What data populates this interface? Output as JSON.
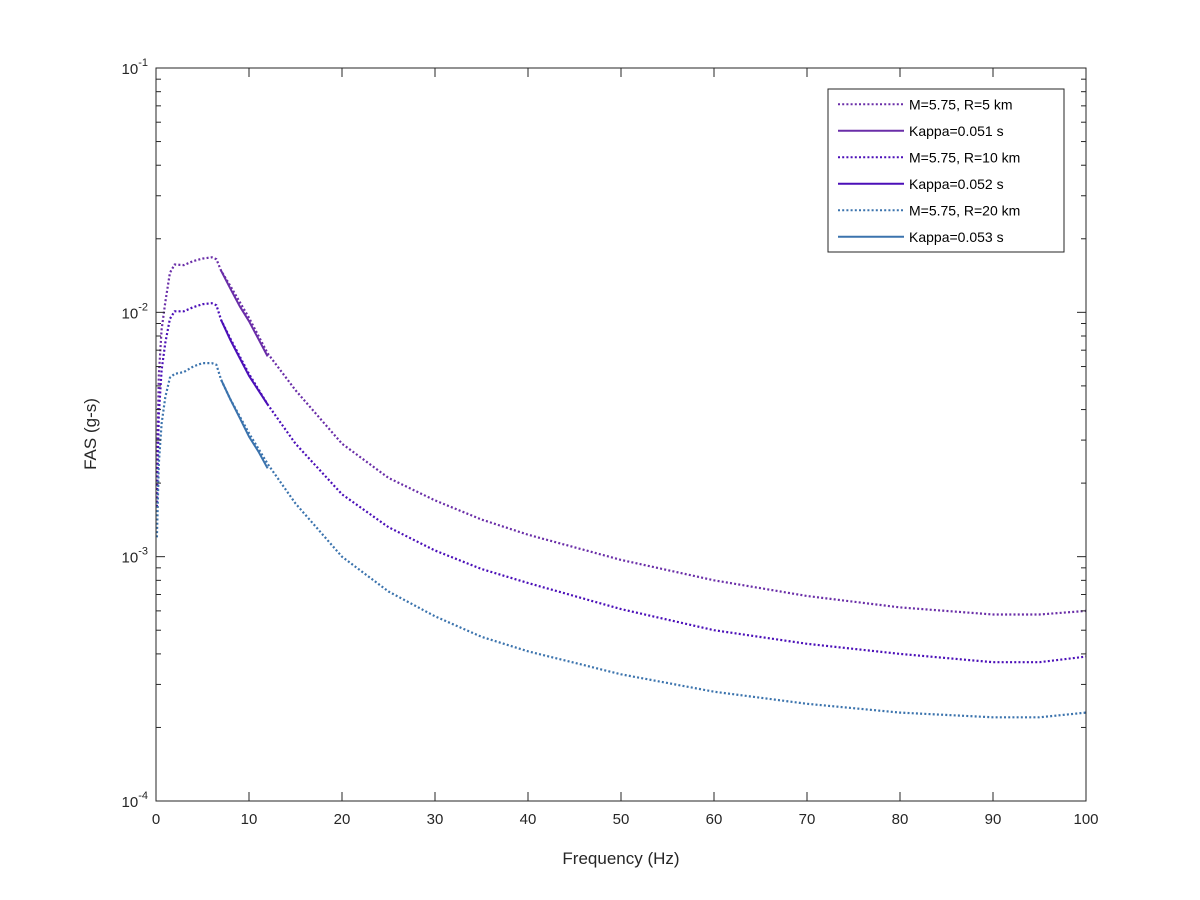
{
  "chart_data": {
    "type": "line",
    "title": "",
    "xlabel": "Frequency (Hz)",
    "ylabel": "FAS (g-s)",
    "xlim": [
      0,
      100
    ],
    "ylim": [
      0.0001,
      0.1
    ],
    "yscale": "log",
    "grid": false,
    "legend_position": "top-right",
    "x_ticks": [
      0,
      10,
      20,
      30,
      40,
      50,
      60,
      70,
      80,
      90,
      100
    ],
    "x_tick_labels": [
      "0",
      "10",
      "20",
      "30",
      "40",
      "50",
      "60",
      "70",
      "80",
      "90",
      "100"
    ],
    "y_ticks": [
      {
        "value": 0.1,
        "base": "10",
        "exponent": "-1"
      },
      {
        "value": 0.01,
        "base": "10",
        "exponent": "-2"
      },
      {
        "value": 0.001,
        "base": "10",
        "exponent": "-3"
      },
      {
        "value": 0.0001,
        "base": "10",
        "exponent": "-4"
      }
    ],
    "series": [
      {
        "name": "M=5.75, R=5 km",
        "style": "dotted",
        "color": "#6a2ea8",
        "x": [
          0.1,
          0.3,
          0.6,
          1.0,
          1.5,
          2.0,
          3.0,
          4.0,
          5.0,
          6.0,
          6.5,
          7.0,
          8.0,
          10.0,
          12.0,
          15.0,
          20.0,
          25.0,
          30.0,
          35.0,
          40.0,
          50.0,
          60.0,
          70.0,
          80.0,
          90.0,
          95.0,
          100.0
        ],
        "y": [
          0.0022,
          0.0055,
          0.0085,
          0.011,
          0.0145,
          0.0157,
          0.0156,
          0.0162,
          0.0166,
          0.0168,
          0.0165,
          0.0148,
          0.0128,
          0.0095,
          0.0068,
          0.0048,
          0.0029,
          0.0021,
          0.0017,
          0.00142,
          0.00123,
          0.00097,
          0.0008,
          0.00069,
          0.00062,
          0.00058,
          0.00058,
          0.0006
        ]
      },
      {
        "name": "Kappa=0.051 s",
        "style": "solid",
        "color": "#6a2ea8",
        "x": [
          7.0,
          8.0,
          9.0,
          10.0,
          11.0,
          12.0
        ],
        "y": [
          0.0148,
          0.0125,
          0.0106,
          0.0092,
          0.0078,
          0.0066
        ]
      },
      {
        "name": "M=5.75, R=10 km",
        "style": "dotted",
        "color": "#4b0fb8",
        "x": [
          0.1,
          0.3,
          0.6,
          1.0,
          1.5,
          2.0,
          3.0,
          4.0,
          5.0,
          6.0,
          6.5,
          7.0,
          8.0,
          10.0,
          12.0,
          15.0,
          20.0,
          25.0,
          30.0,
          35.0,
          40.0,
          50.0,
          60.0,
          70.0,
          80.0,
          90.0,
          95.0,
          100.0
        ],
        "y": [
          0.0016,
          0.0038,
          0.0058,
          0.0075,
          0.0094,
          0.0101,
          0.0101,
          0.0105,
          0.0108,
          0.0109,
          0.0107,
          0.0093,
          0.0078,
          0.0056,
          0.0042,
          0.0029,
          0.0018,
          0.00132,
          0.00106,
          0.00089,
          0.00078,
          0.00061,
          0.0005,
          0.00044,
          0.0004,
          0.00037,
          0.00037,
          0.00039
        ]
      },
      {
        "name": "Kappa=0.052 s",
        "style": "solid",
        "color": "#4b0fb8",
        "x": [
          7.0,
          8.0,
          9.0,
          10.0,
          11.0,
          12.0
        ],
        "y": [
          0.0093,
          0.0077,
          0.0065,
          0.0055,
          0.0048,
          0.0042
        ]
      },
      {
        "name": "M=5.75, R=20 km",
        "style": "dotted",
        "color": "#3b73ad",
        "x": [
          0.1,
          0.3,
          0.6,
          1.0,
          1.5,
          2.0,
          3.0,
          4.0,
          5.0,
          6.0,
          6.5,
          7.0,
          8.0,
          10.0,
          12.0,
          15.0,
          20.0,
          25.0,
          30.0,
          35.0,
          40.0,
          50.0,
          60.0,
          70.0,
          80.0,
          90.0,
          95.0,
          100.0
        ],
        "y": [
          0.0012,
          0.0024,
          0.0035,
          0.0045,
          0.0054,
          0.0056,
          0.0057,
          0.006,
          0.0062,
          0.0062,
          0.0061,
          0.0053,
          0.0044,
          0.0032,
          0.0024,
          0.00165,
          0.001,
          0.00072,
          0.00057,
          0.00047,
          0.00041,
          0.00033,
          0.00028,
          0.00025,
          0.00023,
          0.00022,
          0.00022,
          0.00023
        ]
      },
      {
        "name": "Kappa=0.053 s",
        "style": "solid",
        "color": "#3b73ad",
        "x": [
          7.0,
          8.0,
          9.0,
          10.0,
          11.0,
          12.0
        ],
        "y": [
          0.0053,
          0.0044,
          0.0037,
          0.0031,
          0.0027,
          0.0023
        ]
      }
    ]
  }
}
